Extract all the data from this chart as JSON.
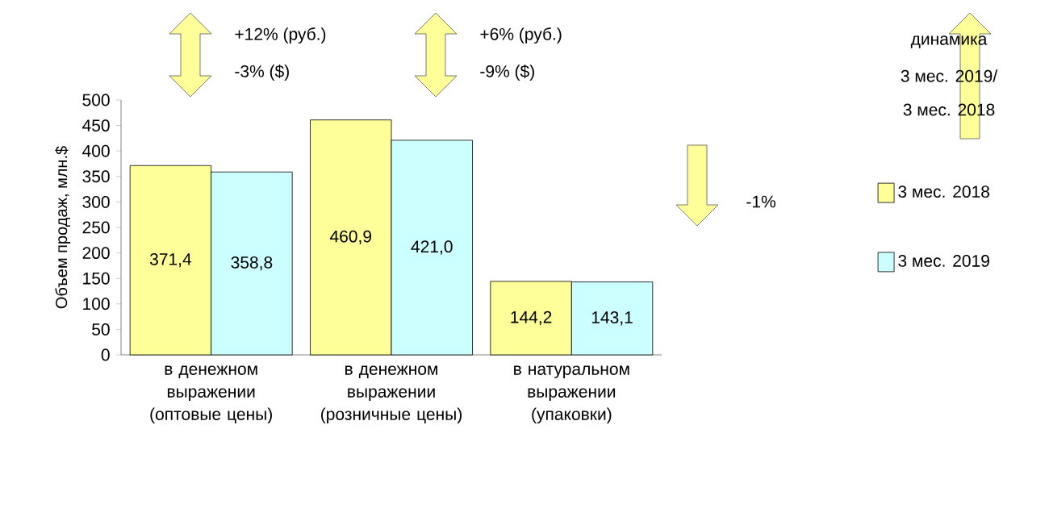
{
  "chart_data": {
    "type": "bar",
    "categories": [
      "в денежном выражении (оптовые цены)",
      "в денежном выражении (розничные цены)",
      "в натуральном выражении (упаковки)"
    ],
    "series": [
      {
        "name": "3 мес. 2018",
        "color": "#ffff99",
        "values": [
          371.4,
          460.9,
          144.2
        ],
        "value_labels": [
          "371,4",
          "460,9",
          "144,2"
        ]
      },
      {
        "name": "3 мес. 2019",
        "color": "#ccffff",
        "values": [
          358.8,
          421.0,
          143.1
        ],
        "value_labels": [
          "358,8",
          "421,0",
          "143,1"
        ]
      }
    ],
    "ylabel": "Объем продаж, млн.$",
    "ylim": [
      0,
      500
    ],
    "yticks": [
      0,
      50,
      100,
      150,
      200,
      250,
      300,
      350,
      400,
      450,
      500
    ],
    "legend": "right",
    "annotations": [
      "+12% (руб.)",
      "-3% ($)",
      "+6% (руб.)",
      "-9% ($)",
      "-1%",
      "динамика",
      "3 мес. 2019/",
      "3 мес. 2018"
    ]
  }
}
